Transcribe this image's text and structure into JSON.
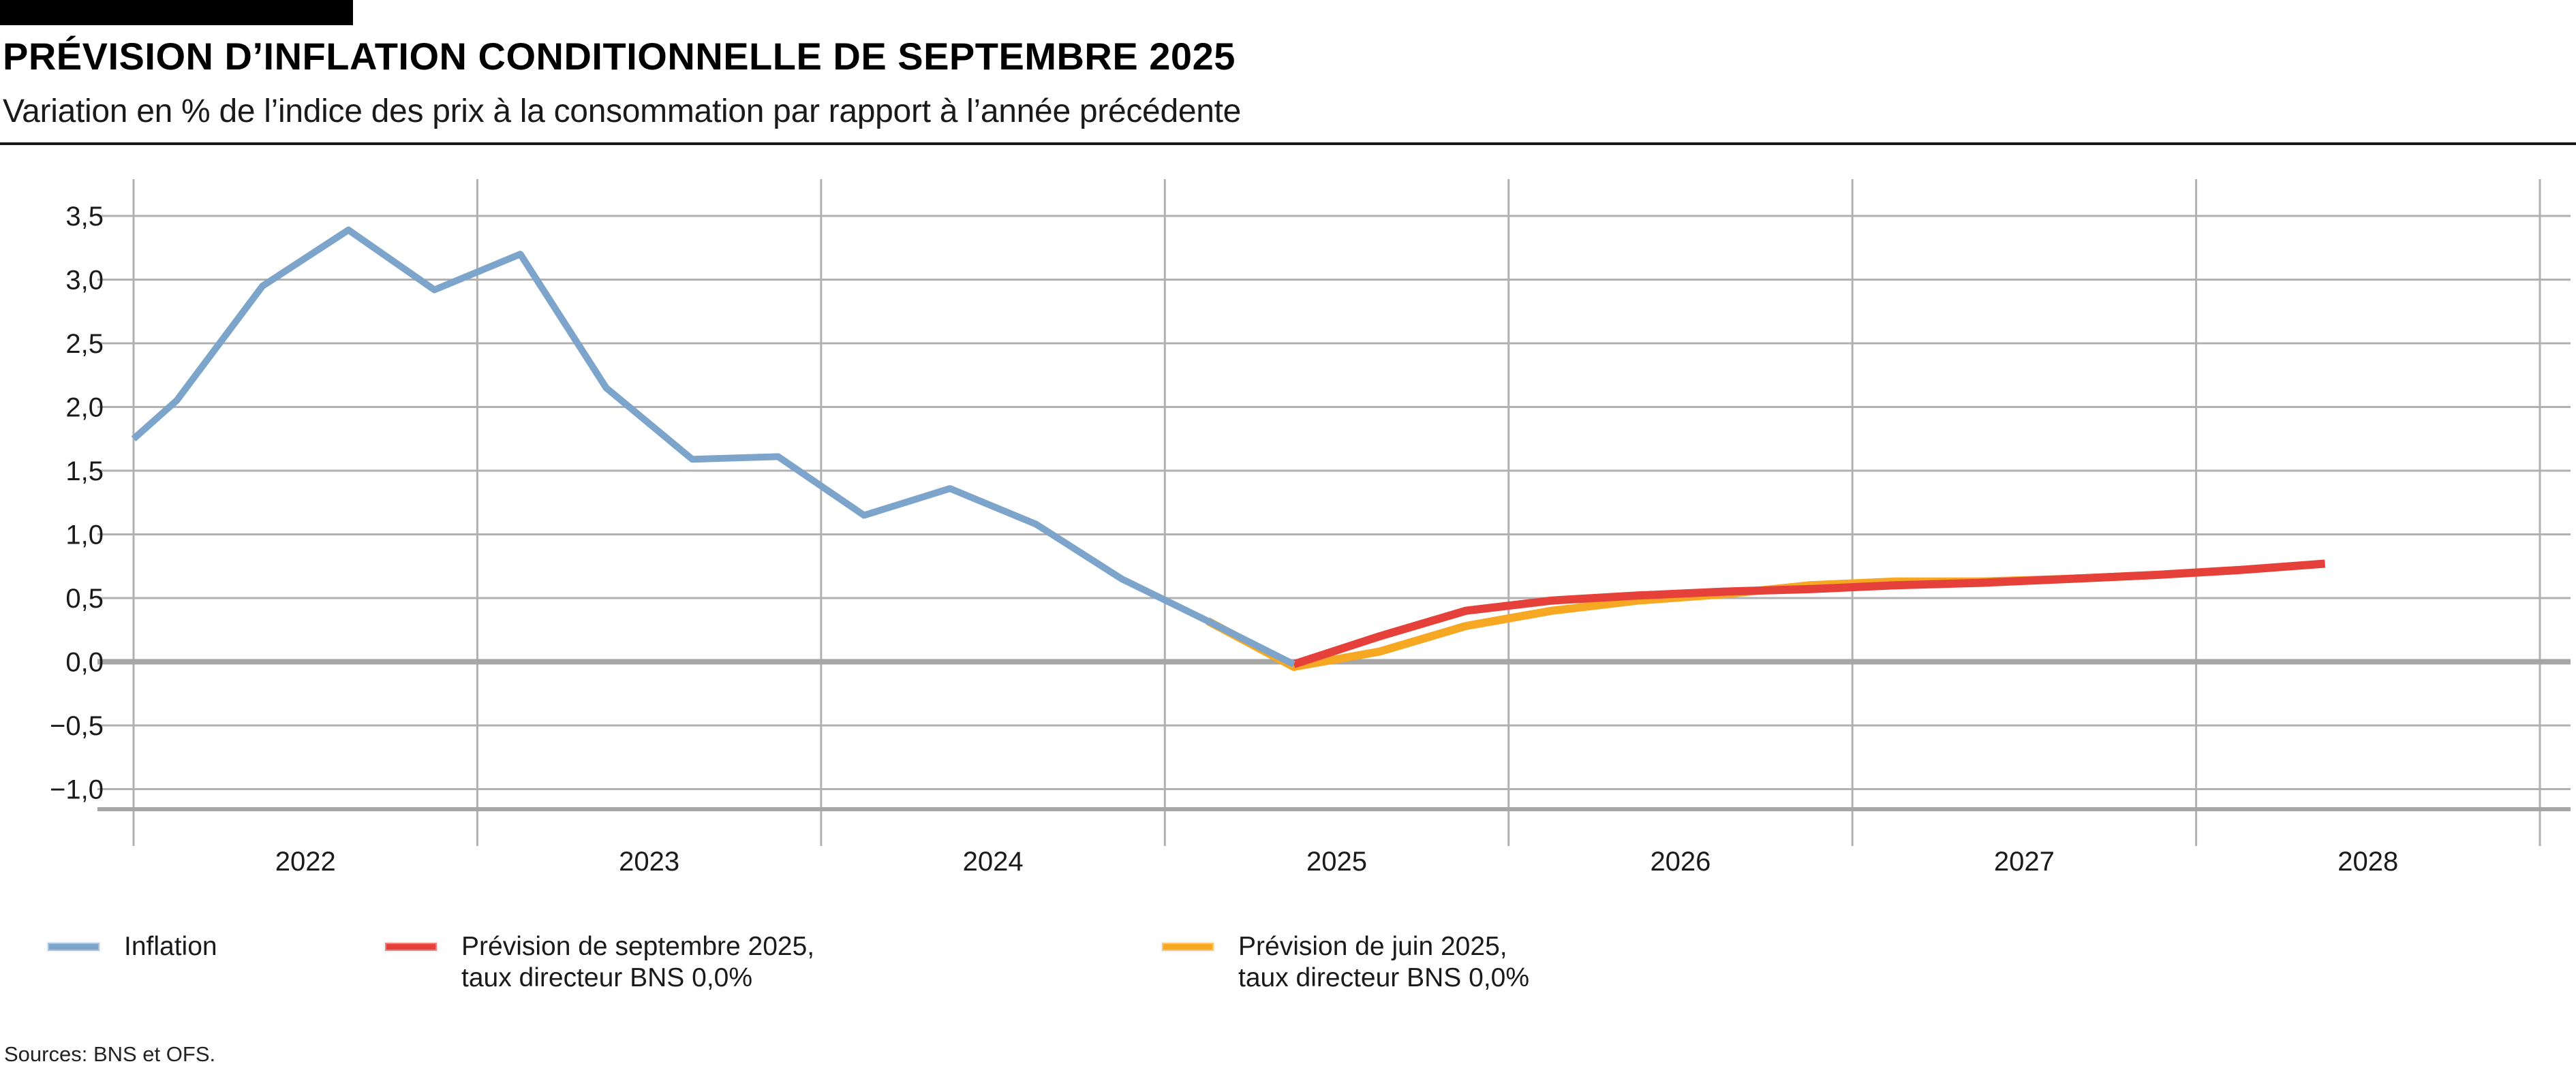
{
  "header": {
    "title": "PRÉVISION D’INFLATION CONDITIONNELLE DE SEPTEMBRE 2025",
    "subtitle": "Variation en % de l’indice des prix à la consommation par rapport à l’année précédente"
  },
  "chart_data": {
    "type": "line",
    "title": "PRÉVISION D’INFLATION CONDITIONNELLE DE SEPTEMBRE 2025",
    "subtitle": "Variation en % de l’indice des prix à la consommation par rapport à l’année précédente",
    "xlabel": "",
    "ylabel": "",
    "x_unit": "years, quarterly data points",
    "xlim": [
      2021.9,
      2029.08
    ],
    "ylim": [
      -1.16,
      3.79
    ],
    "grid": true,
    "legend_position": "bottom",
    "zero_line_emphasized": true,
    "y_ticks": [
      {
        "value": 3.5,
        "label": "3,5"
      },
      {
        "value": 3.0,
        "label": "3,0"
      },
      {
        "value": 2.5,
        "label": "2,5"
      },
      {
        "value": 2.0,
        "label": "2,0"
      },
      {
        "value": 1.5,
        "label": "1,5"
      },
      {
        "value": 1.0,
        "label": "1,0"
      },
      {
        "value": 0.5,
        "label": "0,5"
      },
      {
        "value": 0.0,
        "label": "0,0"
      },
      {
        "value": -0.5,
        "label": "−0,5"
      },
      {
        "value": -1.0,
        "label": "−1,0"
      }
    ],
    "x_year_labels": [
      "2022",
      "2023",
      "2024",
      "2025",
      "2026",
      "2027",
      "2028"
    ],
    "grid_years": [
      2022,
      2023,
      2024,
      2025,
      2026,
      2027,
      2028,
      2029
    ],
    "series": [
      {
        "id": "inflation",
        "name": "Inflation",
        "color": "#7da4cb",
        "stroke_width": 10,
        "points": [
          [
            2022.0,
            1.75
          ],
          [
            2022.125,
            2.05
          ],
          [
            2022.375,
            2.95
          ],
          [
            2022.625,
            3.39
          ],
          [
            2022.875,
            2.92
          ],
          [
            2023.125,
            3.2
          ],
          [
            2023.375,
            2.15
          ],
          [
            2023.625,
            1.59
          ],
          [
            2023.875,
            1.61
          ],
          [
            2024.125,
            1.15
          ],
          [
            2024.375,
            1.36
          ],
          [
            2024.625,
            1.08
          ],
          [
            2024.875,
            0.65
          ],
          [
            2025.125,
            0.32
          ],
          [
            2025.375,
            -0.02
          ]
        ]
      },
      {
        "id": "prevision-septembre-2025",
        "name": "Prévision de septembre 2025, taux directeur BNS 0,0%",
        "color": "#e6403a",
        "stroke_width": 12,
        "points": [
          [
            2025.375,
            -0.02
          ],
          [
            2025.625,
            0.2
          ],
          [
            2025.875,
            0.4
          ],
          [
            2026.125,
            0.48
          ],
          [
            2026.375,
            0.52
          ],
          [
            2026.625,
            0.55
          ],
          [
            2026.875,
            0.57
          ],
          [
            2027.125,
            0.6
          ],
          [
            2027.375,
            0.62
          ],
          [
            2027.625,
            0.65
          ],
          [
            2027.875,
            0.68
          ],
          [
            2028.125,
            0.72
          ],
          [
            2028.375,
            0.77
          ]
        ]
      },
      {
        "id": "prevision-juin-2025",
        "name": "Prévision de juin 2025, taux directeur BNS 0,0%",
        "color": "#f7a823",
        "stroke_width": 12,
        "points": [
          [
            2025.125,
            0.32
          ],
          [
            2025.375,
            -0.04
          ],
          [
            2025.625,
            0.08
          ],
          [
            2025.875,
            0.28
          ],
          [
            2026.125,
            0.4
          ],
          [
            2026.375,
            0.48
          ],
          [
            2026.625,
            0.53
          ],
          [
            2026.875,
            0.6
          ],
          [
            2027.125,
            0.63
          ],
          [
            2027.375,
            0.63
          ],
          [
            2027.625,
            0.65
          ],
          [
            2027.875,
            0.68
          ],
          [
            2028.125,
            0.72
          ]
        ]
      }
    ],
    "colors": {
      "grid_thin": "#b1b1b1",
      "zero_line": "#a6a6a6",
      "plot_bottom_border": "#a6a6a6",
      "text": "#1a1a1a"
    }
  },
  "legend": {
    "items": [
      {
        "series_id": "inflation",
        "lines": [
          "Inflation"
        ]
      },
      {
        "series_id": "prevision-septembre-2025",
        "lines": [
          "Prévision de septembre 2025,",
          "taux directeur BNS 0,0%"
        ]
      },
      {
        "series_id": "prevision-juin-2025",
        "lines": [
          "Prévision de juin 2025,",
          "taux directeur BNS 0,0%"
        ]
      }
    ]
  },
  "footer": {
    "sources": "Sources: BNS et OFS."
  }
}
